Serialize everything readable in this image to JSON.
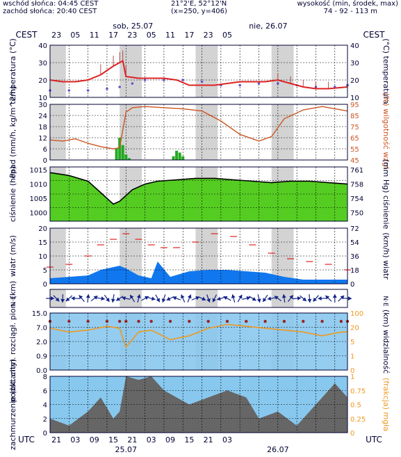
{
  "header": {
    "sunrise": "wschód słońca: 04:45 CEST",
    "sunset": "zachód słońca: 20:40 CEST",
    "coords": "21°2'E, 52°12'N",
    "grid": "(x=250, y=406)",
    "altitude_label": "wysokość (min, środek, max)",
    "altitude_values": "74 - 92 - 113 m"
  },
  "time_axis": {
    "top_zone": "CEST",
    "bottom_zone": "UTC",
    "day_labels_top": [
      "sob, 25.07",
      "nie, 26.07"
    ],
    "top_hours": [
      "23",
      "05",
      "11",
      "17",
      "23",
      "05",
      "11",
      "17",
      "23",
      "05"
    ],
    "bottom_hours": [
      "21",
      "03",
      "09",
      "15",
      "21",
      "03",
      "09",
      "15",
      "21",
      "03"
    ],
    "day_labels_bottom": [
      "25.07",
      "26.07"
    ]
  },
  "colors": {
    "night_band": "#d3d3d3",
    "temp_line": "#dd2222",
    "dew_dots": "#6655cc",
    "precip_bar": "#22aa22",
    "humidity_line": "#cc5522",
    "pressure_fill": "#55cc22",
    "wind_fill": "#1177ee",
    "cloud_fill": "#666666",
    "vis_line": "#ee9922",
    "sky_bg": "#88c8ee",
    "frame": "#000033"
  },
  "chart_data": [
    {
      "type": "line",
      "panel": "temperature",
      "ylabel_left": "temperatura (°C)",
      "ylabel_right": "(°C) temperatura",
      "ylim": [
        10,
        40
      ],
      "yticks": [
        "40",
        "30",
        "20",
        "10"
      ],
      "grid": true,
      "series": [
        {
          "name": "",
          "x": [
            0,
            4,
            8,
            12,
            16,
            20,
            22,
            23,
            24,
            28,
            32,
            36,
            40,
            44,
            48,
            52,
            56,
            60,
            64,
            68,
            72,
            76,
            80,
            84,
            88,
            94
          ],
          "values": [
            20,
            19,
            19,
            20,
            23,
            28,
            30,
            31,
            22,
            21,
            21,
            21,
            20,
            17,
            17,
            17,
            18,
            19,
            19,
            19,
            20,
            18,
            16,
            15,
            15,
            16
          ]
        },
        {
          "name": "",
          "x": [
            0,
            6,
            12,
            18,
            22,
            26,
            30,
            36,
            42,
            48,
            54,
            60,
            66,
            72,
            78,
            84,
            90,
            94
          ],
          "values": [
            14,
            14,
            14,
            15,
            16,
            18,
            20,
            20,
            20,
            19,
            17,
            17,
            18,
            18,
            17,
            16,
            16,
            17
          ]
        }
      ]
    },
    {
      "type": "bar",
      "panel": "precipitation_humidity",
      "ylabel_left": "opad (mm/h, kg/m^2/h)",
      "ylabel_right": "(%) wilgotność wzgl.",
      "ylim": [
        0,
        30
      ],
      "yticks": [
        "30",
        "24",
        "18",
        "12",
        "6",
        "0"
      ],
      "y2lim": [
        45,
        95
      ],
      "y2ticks": [
        "95",
        "85",
        "75",
        "65",
        "55",
        "45"
      ],
      "grid": true,
      "x": [
        21,
        22,
        23,
        24,
        25,
        39,
        40,
        41,
        42
      ],
      "values": [
        6,
        12,
        8,
        3,
        1,
        2,
        5,
        4,
        2
      ],
      "series": [
        {
          "name": "",
          "x": [
            0,
            4,
            8,
            12,
            16,
            20,
            22,
            24,
            26,
            30,
            36,
            42,
            48,
            54,
            60,
            66,
            70,
            74,
            80,
            86,
            94
          ],
          "values": [
            63,
            62,
            64,
            60,
            57,
            55,
            56,
            88,
            92,
            93,
            92,
            91,
            89,
            80,
            68,
            62,
            66,
            82,
            90,
            93,
            89
          ]
        }
      ]
    },
    {
      "type": "area",
      "panel": "pressure",
      "ylabel_left": "ciśnienie (hPa)",
      "ylabel_right": "(mm Hg) ciśnienie",
      "ylim": [
        997,
        1016
      ],
      "yticks": [
        "1015",
        "1010",
        "1005",
        "1000"
      ],
      "y2ticks": [
        "761",
        "758",
        "754",
        "750"
      ],
      "grid": true,
      "x": [
        0,
        6,
        12,
        16,
        19,
        20,
        22,
        26,
        30,
        34,
        40,
        46,
        52,
        58,
        64,
        70,
        76,
        82,
        88,
        94
      ],
      "values": [
        1014,
        1013,
        1011,
        1007,
        1004,
        1003,
        1004,
        1008,
        1010,
        1011,
        1011.5,
        1012,
        1012,
        1011.5,
        1011,
        1010.5,
        1011,
        1011,
        1010.5,
        1010
      ]
    },
    {
      "type": "area",
      "panel": "wind",
      "ylabel_left": "wiatr (m/s)",
      "ylabel_right": "(km/h) wiatr",
      "ylim": [
        0,
        20
      ],
      "yticks": [
        "20",
        "15",
        "10",
        "5",
        "0"
      ],
      "y2ticks": [
        "72",
        "54",
        "36",
        "18",
        "0"
      ],
      "grid": true,
      "x": [
        0,
        6,
        12,
        16,
        20,
        22,
        24,
        28,
        32,
        34,
        38,
        44,
        50,
        56,
        62,
        68,
        74,
        80,
        86,
        94
      ],
      "values": [
        2,
        2.5,
        3,
        5,
        6,
        6.5,
        5.5,
        3,
        2,
        8,
        2.5,
        4.5,
        5,
        5,
        4.5,
        4,
        2.5,
        1.5,
        1.5,
        1.5
      ],
      "series": [
        {
          "name": "",
          "x": [
            0,
            6,
            12,
            16,
            20,
            24,
            28,
            32,
            36,
            40,
            46,
            52,
            58,
            64,
            70,
            76,
            82,
            88,
            94
          ],
          "values": [
            6,
            7,
            10,
            14,
            16,
            18,
            16,
            14,
            13,
            13,
            15,
            18,
            17,
            14,
            11,
            9,
            8,
            7,
            5
          ]
        }
      ]
    },
    {
      "type": "scatter",
      "panel": "visibility",
      "ylabel_left": "podst. chm. rozciągł. pion. (km)",
      "ylabel_right": "(km) widzialność",
      "yticks": [
        "15.0",
        "7.0",
        "2.0",
        "0.9",
        "0.0"
      ],
      "y2ticks": [
        "100",
        "20",
        "5",
        "1",
        "0"
      ],
      "grid": true,
      "series": [
        {
          "name": "",
          "x": [
            0,
            6,
            12,
            18,
            22,
            24,
            28,
            32,
            38,
            44,
            50,
            56,
            62,
            68,
            74,
            80,
            86,
            92,
            94
          ],
          "values": [
            2.2,
            2.0,
            2.1,
            2.3,
            2.2,
            1.2,
            2.0,
            2.1,
            1.6,
            1.8,
            2.2,
            2.4,
            2.3,
            2.2,
            2.1,
            2.0,
            1.8,
            2.0,
            2.0
          ]
        }
      ]
    },
    {
      "type": "area",
      "panel": "cloud_cover",
      "ylabel_left": "zachmurzenie (oktanty)",
      "ylabel_right": "(frakcja) mgła",
      "ylim": [
        0,
        8
      ],
      "yticks": [
        "8",
        "6",
        "4",
        "2",
        "0"
      ],
      "y2ticks": [
        "1",
        "0.75",
        "0.5",
        "0.25",
        "0"
      ],
      "grid": true,
      "x": [
        0,
        6,
        12,
        16,
        20,
        22,
        24,
        28,
        32,
        36,
        40,
        44,
        50,
        56,
        62,
        66,
        72,
        78,
        84,
        90,
        94
      ],
      "values": [
        2,
        1,
        3,
        5,
        2,
        3,
        8,
        7.5,
        8,
        6,
        5,
        4,
        5,
        6,
        5,
        2,
        3,
        1,
        4,
        7,
        5
      ]
    }
  ]
}
